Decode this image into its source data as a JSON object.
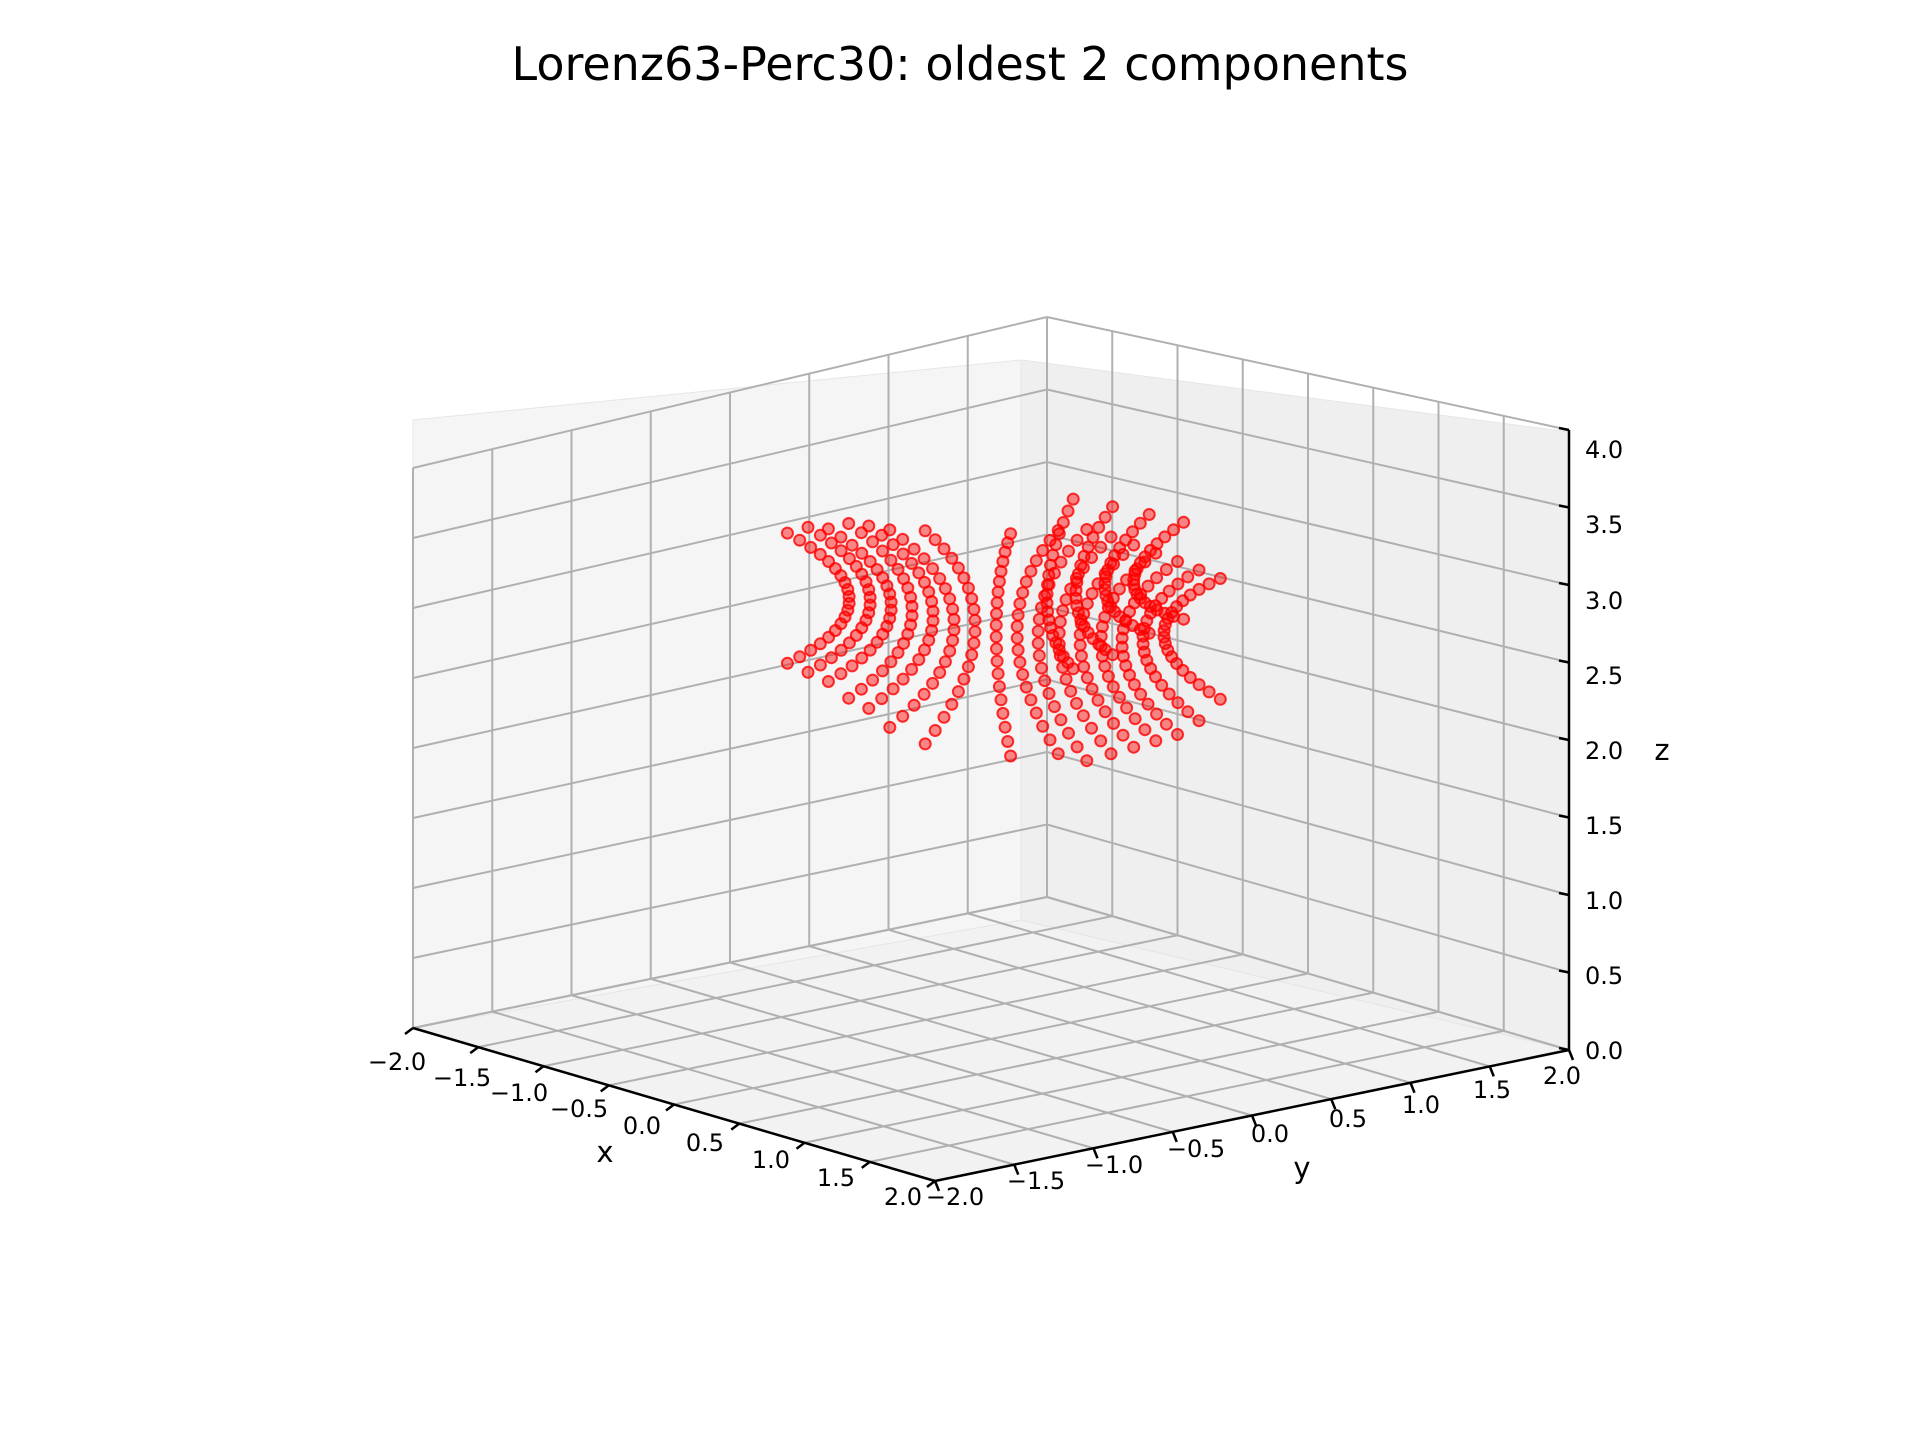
{
  "chart_data": {
    "type": "scatter",
    "projection": "3d",
    "title": "Lorenz63-Perc30: oldest 2 components",
    "xlabel": "x",
    "ylabel": "y",
    "zlabel": "z",
    "xlim": [
      -2.0,
      2.0
    ],
    "ylim": [
      -2.0,
      2.0
    ],
    "zlim": [
      0.0,
      4.0
    ],
    "x_ticks": [
      "−2.0",
      "−1.5",
      "−1.0",
      "−0.5",
      "0.0",
      "0.5",
      "1.0",
      "1.5",
      "2.0"
    ],
    "y_ticks": [
      "−2.0",
      "−1.5",
      "−1.0",
      "−0.5",
      "0.0",
      "0.5",
      "1.0",
      "1.5",
      "2.0"
    ],
    "z_ticks": [
      "0.0",
      "0.5",
      "1.0",
      "1.5",
      "2.0",
      "2.5",
      "3.0",
      "3.5",
      "4.0"
    ],
    "grid": true,
    "marker_color": "#ff0000",
    "series": [
      {
        "description": "arc-shaped strands of points forming a concave (hyperboloid-like) surface; z from about 2.0 to 3.5",
        "strands": [
          {
            "x": -0.6,
            "y": -0.4,
            "z_start": 2.5,
            "z_end": 3.4
          },
          {
            "x": -0.5,
            "y": -0.35,
            "z_start": 2.45,
            "z_end": 3.45
          },
          {
            "x": -0.4,
            "y": -0.3,
            "z_start": 2.4,
            "z_end": 3.45
          },
          {
            "x": -0.3,
            "y": -0.25,
            "z_start": 2.3,
            "z_end": 3.5
          },
          {
            "x": -0.2,
            "y": -0.2,
            "z_start": 2.25,
            "z_end": 3.5
          },
          {
            "x": -0.1,
            "y": -0.15,
            "z_start": 2.15,
            "z_end": 3.5
          },
          {
            "x": 0.0,
            "y": -0.1,
            "z_start": 2.1,
            "z_end": 3.55
          },
          {
            "x": 0.1,
            "y": -0.05,
            "z_start": 2.05,
            "z_end": 3.55
          },
          {
            "x": 0.2,
            "y": 0.0,
            "z_start": 2.05,
            "z_end": 3.55
          },
          {
            "x": 0.3,
            "y": 0.05,
            "z_start": 2.0,
            "z_end": 3.55
          },
          {
            "x": 0.4,
            "y": 0.1,
            "z_start": 2.05,
            "z_end": 3.5
          },
          {
            "x": 0.5,
            "y": 0.15,
            "z_start": 2.1,
            "z_end": 3.45
          },
          {
            "x": 0.6,
            "y": 0.2,
            "z_start": 2.15,
            "z_end": 3.4
          },
          {
            "x": 0.7,
            "y": 0.25,
            "z_start": 2.2,
            "z_end": 3.35
          },
          {
            "x": 0.8,
            "y": 0.3,
            "z_start": 2.3,
            "z_end": 3.3
          },
          {
            "x": 0.9,
            "y": 0.35,
            "z_start": 2.45,
            "z_end": 3.25
          },
          {
            "x": -0.3,
            "y": 0.6,
            "z_start": 2.2,
            "z_end": 3.35
          },
          {
            "x": -0.2,
            "y": 0.7,
            "z_start": 2.3,
            "z_end": 3.3
          },
          {
            "x": -0.1,
            "y": 0.8,
            "z_start": 2.45,
            "z_end": 3.25
          },
          {
            "x": 0.0,
            "y": 0.9,
            "z_start": 2.55,
            "z_end": 3.2
          }
        ]
      }
    ]
  }
}
